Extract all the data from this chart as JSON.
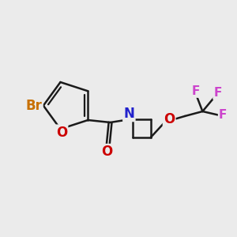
{
  "bg_color": "#ebebeb",
  "bond_color": "#1a1a1a",
  "atom_colors": {
    "Br": "#c87000",
    "O": "#cc0000",
    "N": "#2222cc",
    "F": "#cc44cc",
    "C": "#1a1a1a"
  },
  "bond_width": 1.8,
  "font_size_atoms": 12,
  "font_size_small": 11
}
